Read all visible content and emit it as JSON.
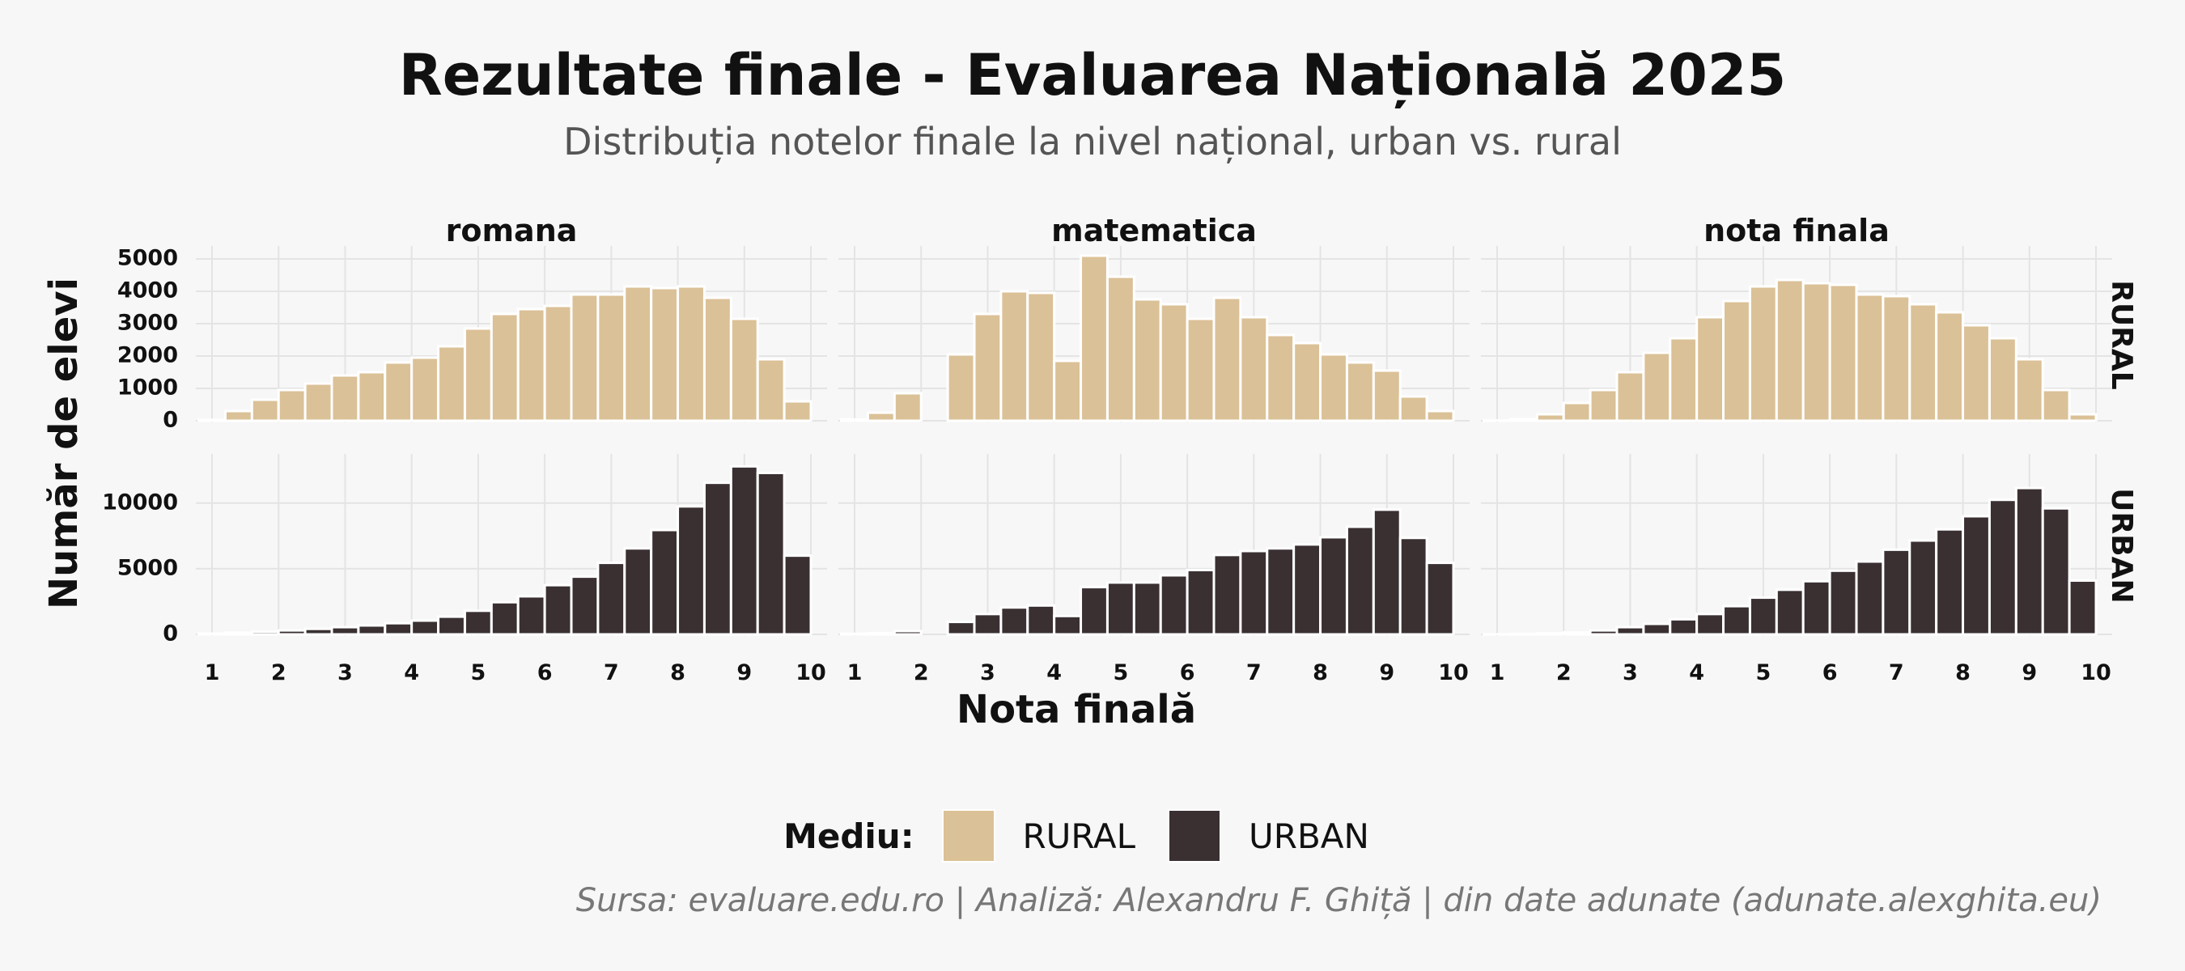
{
  "title": "Rezultate finale - Evaluarea Națională 2025",
  "subtitle": "Distribuția notelor finale la nivel național, urban vs. rural",
  "caption": "Sursa: evaluare.edu.ro | Analiză: Alexandru F. Ghiță | din date adunate (adunate.alexghita.eu)",
  "legend": {
    "title": "Mediu:",
    "items": [
      {
        "label": "RURAL",
        "color": "#dbc197"
      },
      {
        "label": "URBAN",
        "color": "#3a3032"
      }
    ]
  },
  "chart_data": {
    "type": "bar",
    "title": "Rezultate finale - Evaluarea Națională 2025",
    "xlabel": "Nota finală",
    "ylabel": "Număr de elevi",
    "xlim": [
      1,
      10
    ],
    "x_ticks": [
      "1",
      "2",
      "3",
      "4",
      "5",
      "6",
      "7",
      "8",
      "9",
      "10"
    ],
    "bin_centers": [
      1.0,
      1.4,
      1.8,
      2.2,
      2.6,
      3.0,
      3.4,
      3.8,
      4.2,
      4.6,
      5.0,
      5.4,
      5.8,
      6.2,
      6.6,
      7.0,
      7.4,
      7.8,
      8.2,
      8.6,
      9.0,
      9.4,
      9.8
    ],
    "bin_width": 0.4,
    "columns": [
      "romana",
      "matematica",
      "nota finala"
    ],
    "rows": [
      "RURAL",
      "URBAN"
    ],
    "row_scales": [
      {
        "row": "RURAL",
        "ylim": [
          0,
          5300
        ],
        "ticks": [
          0,
          1000,
          2000,
          3000,
          4000,
          5000
        ],
        "tick_labels": [
          "0",
          "1000",
          "2000",
          "3000",
          "4000",
          "5000"
        ]
      },
      {
        "row": "URBAN",
        "ylim": [
          0,
          13500
        ],
        "ticks": [
          0,
          5000,
          10000
        ],
        "tick_labels": [
          "0",
          "5000",
          "10000"
        ]
      }
    ],
    "series": [
      {
        "subject": "romana",
        "mediu": "RURAL",
        "values": [
          30,
          300,
          650,
          950,
          1150,
          1400,
          1500,
          1800,
          1950,
          2300,
          2850,
          3300,
          3450,
          3550,
          3900,
          3900,
          4150,
          4100,
          4150,
          3800,
          3150,
          1900,
          600
        ]
      },
      {
        "subject": "matematica",
        "mediu": "RURAL",
        "values": [
          40,
          250,
          850,
          0,
          2050,
          3300,
          4000,
          3950,
          1850,
          5100,
          4450,
          3750,
          3600,
          3150,
          3800,
          3200,
          2650,
          2400,
          2050,
          1800,
          1550,
          750,
          300
        ]
      },
      {
        "subject": "nota finala",
        "mediu": "RURAL",
        "values": [
          10,
          50,
          200,
          550,
          950,
          1500,
          2100,
          2550,
          3200,
          3700,
          4150,
          4350,
          4250,
          4200,
          3900,
          3850,
          3600,
          3350,
          2950,
          2550,
          1900,
          950,
          200
        ]
      },
      {
        "subject": "romana",
        "mediu": "URBAN",
        "values": [
          60,
          120,
          200,
          300,
          420,
          550,
          680,
          850,
          1050,
          1350,
          1800,
          2450,
          2900,
          3750,
          4400,
          5450,
          6550,
          7950,
          9750,
          11550,
          12800,
          12300,
          6000
        ]
      },
      {
        "subject": "matematica",
        "mediu": "URBAN",
        "values": [
          50,
          100,
          250,
          0,
          950,
          1550,
          2050,
          2200,
          1400,
          3600,
          3950,
          3950,
          4500,
          4900,
          6050,
          6350,
          6550,
          6850,
          7400,
          8200,
          9500,
          7350,
          5450
        ]
      },
      {
        "subject": "nota finala",
        "mediu": "URBAN",
        "values": [
          10,
          30,
          80,
          150,
          300,
          550,
          800,
          1150,
          1550,
          2150,
          2800,
          3400,
          4050,
          4850,
          5550,
          6450,
          7150,
          8000,
          9000,
          10250,
          11150,
          9600,
          4100
        ]
      }
    ]
  }
}
